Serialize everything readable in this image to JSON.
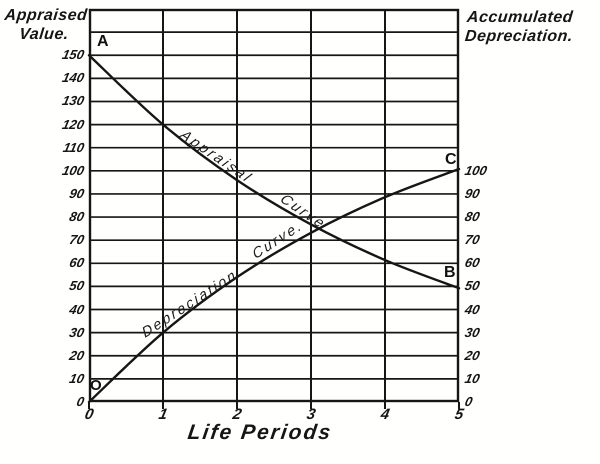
{
  "header": {
    "left_line1": "Appraised",
    "left_line2": "Value.",
    "right_line1": "Accumulated",
    "right_line2": "Depreciation."
  },
  "points": {
    "A": "A",
    "B": "B",
    "C": "C",
    "O": "O"
  },
  "curve_labels": {
    "appraisal_word1": "Appraisal",
    "appraisal_word2": "Curve",
    "depreciation_word1": "Depreciation",
    "depreciation_word2": "Curve."
  },
  "colors": {
    "ink": "#161616",
    "paper": "#fffffe"
  },
  "chart_data": {
    "type": "line",
    "title": "",
    "xlabel": "Life Periods",
    "x": [
      0,
      1,
      2,
      3,
      4,
      5
    ],
    "x_ticks": [
      "0",
      "1",
      "2",
      "3",
      "4",
      "5"
    ],
    "value_range": [
      0,
      170
    ],
    "grid": {
      "on": true,
      "h_step": 10,
      "h_lines_to": 160,
      "v_at_each_period": true
    },
    "left_axis": {
      "label": "Appraised Value.",
      "ticks": [
        0,
        10,
        20,
        30,
        40,
        50,
        60,
        70,
        80,
        90,
        100,
        110,
        120,
        130,
        140,
        150
      ]
    },
    "right_axis": {
      "label": "Accumulated Depreciation.",
      "ticks": [
        0,
        10,
        20,
        30,
        40,
        50,
        60,
        70,
        80,
        90,
        100
      ]
    },
    "series": [
      {
        "name": "Appraisal Curve",
        "start_point": "A",
        "end_point": "B",
        "values": [
          150,
          120,
          96,
          76.8,
          61.4,
          49.2
        ]
      },
      {
        "name": "Depreciation Curve.",
        "start_point": "O",
        "end_point": "C",
        "values": [
          0,
          30,
          54,
          73.2,
          88.6,
          100.8
        ]
      }
    ]
  }
}
